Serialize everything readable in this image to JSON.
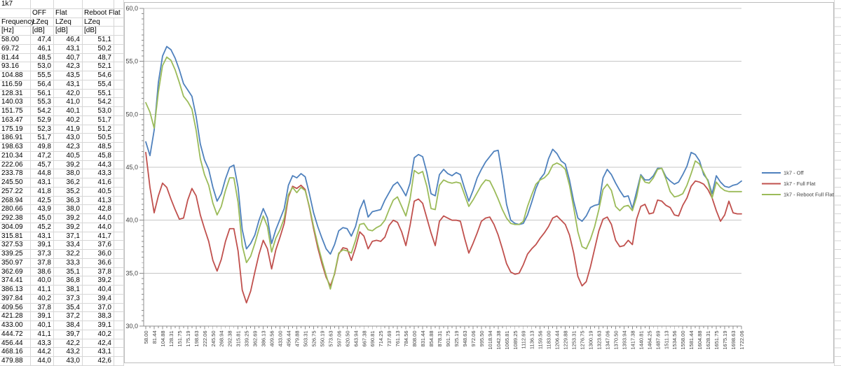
{
  "sheet": {
    "cell_a1": "1k7",
    "table": {
      "col_headers_row2": [
        "",
        "OFF",
        "Flat",
        "Reboot Flat"
      ],
      "col_headers_row3": [
        "Frequency",
        "LZeq",
        "LZeq",
        "LZeq"
      ],
      "col_headers_row4": [
        "[Hz]",
        "[dB]",
        "[dB]",
        "[dB]"
      ],
      "rows": [
        {
          "hz": "58.00",
          "off": "47,4",
          "flat": "46,4",
          "reboot": "51,1"
        },
        {
          "hz": "69.72",
          "off": "46,1",
          "flat": "43,1",
          "reboot": "50,2"
        },
        {
          "hz": "81.44",
          "off": "48,5",
          "flat": "40,7",
          "reboot": "48,7"
        },
        {
          "hz": "93.16",
          "off": "53,0",
          "flat": "42,3",
          "reboot": "52,1"
        },
        {
          "hz": "104.88",
          "off": "55,5",
          "flat": "43,5",
          "reboot": "54,6"
        },
        {
          "hz": "116.59",
          "off": "56,4",
          "flat": "43,1",
          "reboot": "55,4"
        },
        {
          "hz": "128.31",
          "off": "56,1",
          "flat": "42,0",
          "reboot": "55,1"
        },
        {
          "hz": "140.03",
          "off": "55,3",
          "flat": "41,0",
          "reboot": "54,2"
        },
        {
          "hz": "151.75",
          "off": "54,2",
          "flat": "40,1",
          "reboot": "53,0"
        },
        {
          "hz": "163.47",
          "off": "52,9",
          "flat": "40,2",
          "reboot": "51,7"
        },
        {
          "hz": "175.19",
          "off": "52,3",
          "flat": "41,9",
          "reboot": "51,2"
        },
        {
          "hz": "186.91",
          "off": "51,7",
          "flat": "43,0",
          "reboot": "50,5"
        },
        {
          "hz": "198.63",
          "off": "49,8",
          "flat": "42,3",
          "reboot": "48,5"
        },
        {
          "hz": "210.34",
          "off": "47,2",
          "flat": "40,5",
          "reboot": "45,8"
        },
        {
          "hz": "222.06",
          "off": "45,7",
          "flat": "39,2",
          "reboot": "44,3"
        },
        {
          "hz": "233.78",
          "off": "44,8",
          "flat": "38,0",
          "reboot": "43,3"
        },
        {
          "hz": "245.50",
          "off": "43,1",
          "flat": "36,2",
          "reboot": "41,6"
        },
        {
          "hz": "257.22",
          "off": "41,8",
          "flat": "35,2",
          "reboot": "40,5"
        },
        {
          "hz": "268.94",
          "off": "42,5",
          "flat": "36,3",
          "reboot": "41,3"
        },
        {
          "hz": "280.66",
          "off": "43,9",
          "flat": "38,0",
          "reboot": "42,8"
        },
        {
          "hz": "292.38",
          "off": "45,0",
          "flat": "39,2",
          "reboot": "44,0"
        },
        {
          "hz": "304.09",
          "off": "45,2",
          "flat": "39,2",
          "reboot": "44,0"
        },
        {
          "hz": "315.81",
          "off": "43,1",
          "flat": "37,1",
          "reboot": "41,7"
        },
        {
          "hz": "327.53",
          "off": "39,1",
          "flat": "33,4",
          "reboot": "37,6"
        },
        {
          "hz": "339.25",
          "off": "37,3",
          "flat": "32,2",
          "reboot": "36,0"
        },
        {
          "hz": "350.97",
          "off": "37,8",
          "flat": "33,3",
          "reboot": "36,6"
        },
        {
          "hz": "362.69",
          "off": "38,6",
          "flat": "35,1",
          "reboot": "37,8"
        },
        {
          "hz": "374.41",
          "off": "40,0",
          "flat": "36,8",
          "reboot": "39,2"
        },
        {
          "hz": "386.13",
          "off": "41,1",
          "flat": "38,1",
          "reboot": "40,4"
        },
        {
          "hz": "397.84",
          "off": "40,2",
          "flat": "37,3",
          "reboot": "39,4"
        },
        {
          "hz": "409.56",
          "off": "37,8",
          "flat": "35,4",
          "reboot": "37,0"
        },
        {
          "hz": "421.28",
          "off": "39,1",
          "flat": "37,2",
          "reboot": "38,3"
        },
        {
          "hz": "433.00",
          "off": "40,1",
          "flat": "38,4",
          "reboot": "39,1"
        },
        {
          "hz": "444.72",
          "off": "41,1",
          "flat": "39,7",
          "reboot": "40,2"
        },
        {
          "hz": "456.44",
          "off": "43,3",
          "flat": "42,2",
          "reboot": "42,4"
        },
        {
          "hz": "468.16",
          "off": "44,2",
          "flat": "43,2",
          "reboot": "43,1"
        },
        {
          "hz": "479.88",
          "off": "44,0",
          "flat": "43,0",
          "reboot": "42,6"
        }
      ]
    }
  },
  "chart_data": {
    "type": "line",
    "title": "",
    "xlabel": "",
    "ylabel": "",
    "ylim": [
      30,
      60
    ],
    "ytick_step": 5,
    "ytick_labels": [
      "30,0",
      "35,0",
      "40,0",
      "45,0",
      "50,0",
      "55,0",
      "60,0"
    ],
    "grid": true,
    "legend_position": "right",
    "x_tick_label_every": 2,
    "x_hz": [
      "58.00",
      "69.72",
      "81.44",
      "93.16",
      "104.88",
      "116.59",
      "128.31",
      "140.03",
      "151.75",
      "163.47",
      "175.19",
      "186.91",
      "198.63",
      "210.34",
      "222.06",
      "233.78",
      "245.50",
      "257.22",
      "268.94",
      "280.66",
      "292.38",
      "304.09",
      "315.81",
      "327.53",
      "339.25",
      "350.97",
      "362.69",
      "374.41",
      "386.13",
      "397.84",
      "409.56",
      "421.28",
      "433.00",
      "444.72",
      "456.44",
      "468.16",
      "479.88",
      "491.59",
      "503.31",
      "515.03",
      "526.75",
      "538.47",
      "550.19",
      "561.91",
      "573.63",
      "585.34",
      "597.06",
      "608.78",
      "620.50",
      "632.22",
      "643.94",
      "655.66",
      "667.38",
      "679.09",
      "690.81",
      "702.53",
      "714.25",
      "725.97",
      "737.69",
      "749.41",
      "761.13",
      "772.84",
      "784.56",
      "796.28",
      "808.00",
      "819.72",
      "831.44",
      "843.16",
      "854.88",
      "866.59",
      "878.31",
      "890.03",
      "901.75",
      "913.47",
      "925.19",
      "936.91",
      "948.63",
      "960.34",
      "972.06",
      "983.78",
      "995.50",
      "1007.22",
      "1018.94",
      "1030.66",
      "1042.38",
      "1054.09",
      "1065.81",
      "1077.53",
      "1089.25",
      "1100.97",
      "1112.69",
      "1124.41",
      "1136.13",
      "1147.84",
      "1159.56",
      "1171.28",
      "1183.00",
      "1194.72",
      "1206.44",
      "1218.16",
      "1229.88",
      "1241.59",
      "1253.31",
      "1265.03",
      "1276.75",
      "1288.47",
      "1300.19",
      "1311.91",
      "1323.63",
      "1335.34",
      "1347.06",
      "1358.78",
      "1370.50",
      "1382.22",
      "1393.94",
      "1405.66",
      "1417.38",
      "1429.09",
      "1440.81",
      "1452.53",
      "1464.25",
      "1475.97",
      "1487.69",
      "1499.41",
      "1511.13",
      "1522.84",
      "1534.56",
      "1546.28",
      "1558.00",
      "1569.72",
      "1581.44",
      "1593.16",
      "1604.88",
      "1616.59",
      "1628.31",
      "1640.03",
      "1651.75",
      "1663.47",
      "1675.19",
      "1686.91",
      "1698.63",
      "1710.34",
      "1722.06"
    ],
    "series": [
      {
        "name": "1k7 - Off",
        "color": "#4F81BD",
        "values": [
          47.4,
          46.1,
          48.5,
          53.0,
          55.5,
          56.4,
          56.1,
          55.3,
          54.2,
          52.9,
          52.3,
          51.7,
          49.8,
          47.2,
          45.7,
          44.8,
          43.1,
          41.8,
          42.5,
          43.9,
          45.0,
          45.2,
          43.1,
          39.1,
          37.3,
          37.8,
          38.6,
          40.0,
          41.1,
          40.2,
          37.8,
          39.1,
          40.1,
          41.1,
          43.3,
          44.2,
          44.0,
          44.4,
          44.1,
          42.5,
          40.7,
          39.4,
          38.3,
          37.3,
          36.8,
          37.7,
          39.0,
          39.3,
          39.2,
          38.5,
          39.4,
          41.0,
          41.9,
          40.3,
          40.8,
          40.9,
          41.0,
          41.9,
          42.6,
          43.3,
          43.6,
          43.0,
          42.3,
          43.5,
          45.9,
          46.2,
          46.0,
          44.5,
          42.5,
          42.3,
          44.3,
          44.8,
          44.4,
          44.2,
          44.5,
          44.3,
          43.0,
          41.8,
          42.8,
          44.0,
          44.8,
          45.5,
          46.0,
          46.5,
          46.6,
          44.2,
          41.5,
          40.0,
          39.7,
          39.6,
          39.7,
          40.5,
          41.7,
          43.0,
          43.9,
          44.4,
          45.8,
          46.7,
          46.3,
          45.6,
          45.3,
          43.8,
          41.8,
          40.2,
          39.9,
          40.4,
          41.2,
          41.4,
          41.5,
          44.0,
          44.8,
          44.3,
          43.5,
          42.8,
          42.2,
          42.3,
          41.1,
          42.7,
          44.3,
          43.8,
          43.8,
          44.2,
          44.9,
          44.9,
          44.1,
          43.7,
          43.4,
          43.6,
          44.3,
          45.1,
          46.4,
          46.2,
          45.6,
          44.3,
          43.8,
          42.5,
          44.2,
          43.6,
          43.2,
          43.1,
          43.3,
          43.4,
          43.7
        ]
      },
      {
        "name": "1k7 - Full Flat",
        "color": "#C0504D",
        "values": [
          46.4,
          43.1,
          40.7,
          42.3,
          43.5,
          43.1,
          42.0,
          41.0,
          40.1,
          40.2,
          41.9,
          43.0,
          42.3,
          40.5,
          39.2,
          38.0,
          36.2,
          35.2,
          36.3,
          38.0,
          39.2,
          39.2,
          37.1,
          33.4,
          32.2,
          33.3,
          35.1,
          36.8,
          38.1,
          37.3,
          35.4,
          37.2,
          38.4,
          39.7,
          42.2,
          43.2,
          43.0,
          43.3,
          42.9,
          41.2,
          39.2,
          37.4,
          35.9,
          34.6,
          33.8,
          34.9,
          36.8,
          37.4,
          37.3,
          36.2,
          37.4,
          38.9,
          38.5,
          37.3,
          38.0,
          38.1,
          38.0,
          38.4,
          39.5,
          40.0,
          39.8,
          38.9,
          37.6,
          39.5,
          41.8,
          42.0,
          41.6,
          40.2,
          38.8,
          37.6,
          39.9,
          40.4,
          40.2,
          40.0,
          40.0,
          39.9,
          38.3,
          36.9,
          37.8,
          38.8,
          39.9,
          40.2,
          40.3,
          39.6,
          38.6,
          37.3,
          35.9,
          35.1,
          34.9,
          35.0,
          35.8,
          36.8,
          37.3,
          37.7,
          38.3,
          38.8,
          39.4,
          40.2,
          40.4,
          40.0,
          39.6,
          38.6,
          36.9,
          34.7,
          33.8,
          34.2,
          35.6,
          37.3,
          39.0,
          40.1,
          40.3,
          39.6,
          38.1,
          37.5,
          37.6,
          38.1,
          37.7,
          40.1,
          41.3,
          41.5,
          40.6,
          40.7,
          41.9,
          41.8,
          41.4,
          41.2,
          40.5,
          40.4,
          41.4,
          42.1,
          43.2,
          43.7,
          43.6,
          43.4,
          42.9,
          42.1,
          40.9,
          39.9,
          40.5,
          41.8,
          40.7,
          40.6,
          40.6
        ]
      },
      {
        "name": "1k7 - Reboot Full Flat",
        "color": "#9BBB59",
        "values": [
          51.1,
          50.2,
          48.7,
          52.1,
          54.6,
          55.4,
          55.1,
          54.2,
          53.0,
          51.7,
          51.2,
          50.5,
          48.5,
          45.8,
          44.3,
          43.3,
          41.6,
          40.5,
          41.3,
          42.8,
          44.0,
          44.0,
          41.7,
          37.6,
          36.0,
          36.6,
          37.8,
          39.2,
          40.4,
          39.4,
          37.0,
          38.3,
          39.1,
          40.2,
          42.4,
          43.1,
          42.6,
          43.1,
          42.8,
          41.3,
          39.4,
          37.7,
          36.2,
          34.8,
          33.5,
          35.0,
          36.9,
          37.2,
          37.1,
          36.9,
          38.1,
          39.6,
          39.7,
          39.1,
          39.0,
          39.3,
          39.5,
          40.0,
          41.0,
          41.9,
          42.2,
          41.3,
          40.4,
          42.0,
          44.7,
          44.4,
          44.6,
          43.2,
          41.1,
          41.0,
          43.3,
          43.8,
          43.6,
          43.5,
          43.6,
          43.5,
          42.4,
          41.3,
          41.9,
          42.6,
          43.3,
          43.8,
          43.7,
          42.9,
          42.0,
          41.0,
          40.2,
          39.7,
          39.6,
          39.6,
          39.9,
          41.3,
          42.4,
          43.4,
          43.8,
          44.0,
          44.4,
          45.2,
          45.4,
          45.2,
          44.8,
          43.3,
          41.2,
          38.9,
          37.5,
          37.3,
          38.2,
          39.4,
          41.0,
          42.9,
          43.4,
          42.8,
          41.3,
          40.9,
          41.3,
          41.4,
          40.9,
          42.2,
          44.2,
          43.6,
          43.5,
          44.0,
          44.8,
          44.9,
          43.9,
          42.7,
          42.2,
          42.3,
          42.5,
          43.3,
          44.4,
          45.6,
          45.3,
          44.5,
          43.7,
          42.1,
          43.6,
          43.1,
          42.8,
          42.7,
          42.7,
          42.7,
          42.7
        ]
      }
    ],
    "colors": {
      "gridline": "#c6c6c6",
      "axis": "#8c8c8c",
      "label_text": "#3f3f3f",
      "chart_border": "#bdbdbd"
    }
  }
}
